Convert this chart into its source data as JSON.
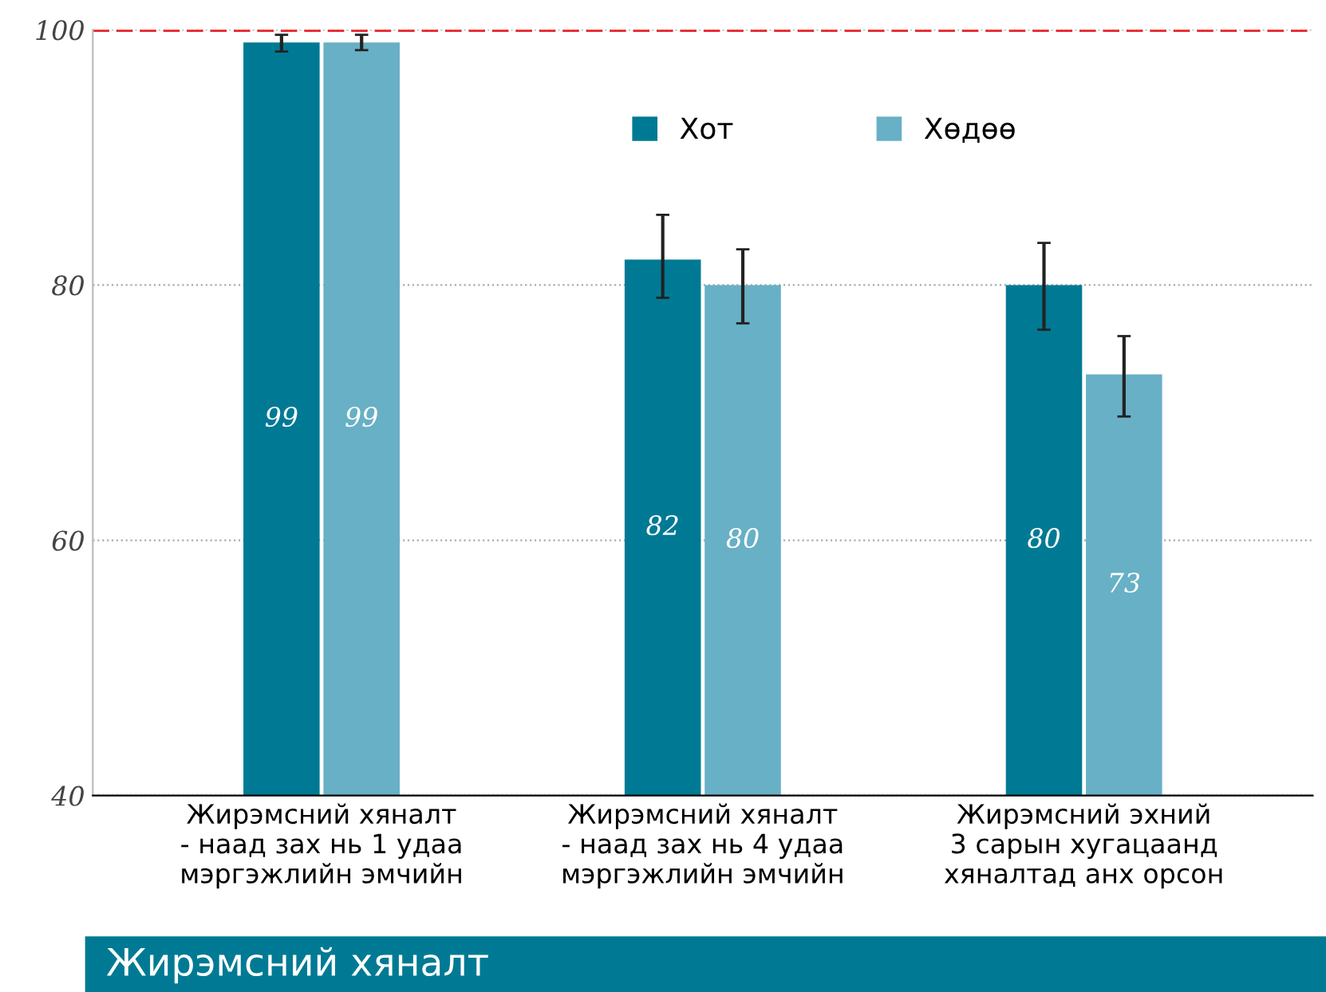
{
  "chart_data": {
    "type": "bar",
    "categories": [
      "Жирэмсний хяналт\n- наад зах нь 1 удаа\nмэргэжлийн эмчийн",
      "Жирэмсний хяналт\n- наад зах нь 4 удаа\nмэргэжлийн эмчийн",
      "Жирэмсний эхний\n3 сарын хугацаанд\nхяналтад анх орсон"
    ],
    "series": [
      {
        "name": "Хот",
        "color": "#007a94",
        "values": [
          99,
          82,
          80
        ],
        "errors": [
          [
            98.3,
            99.6
          ],
          [
            79,
            85.5
          ],
          [
            76.5,
            83.3
          ]
        ]
      },
      {
        "name": "Хөдөө",
        "color": "#68b0c5",
        "values": [
          99,
          80,
          73
        ],
        "errors": [
          [
            98.4,
            99.6
          ],
          [
            77,
            82.8
          ],
          [
            69.7,
            76
          ]
        ]
      }
    ],
    "xlabel": "Жирэмсний хяналт",
    "ylim": [
      40,
      100
    ],
    "yticks": [
      40,
      60,
      80,
      100
    ],
    "grid": "y",
    "legend": "top",
    "data_labels": true,
    "ref_lines": [
      {
        "axis": "y",
        "value": 100,
        "color": "#e8262a",
        "line_style": "dashed"
      }
    ]
  }
}
